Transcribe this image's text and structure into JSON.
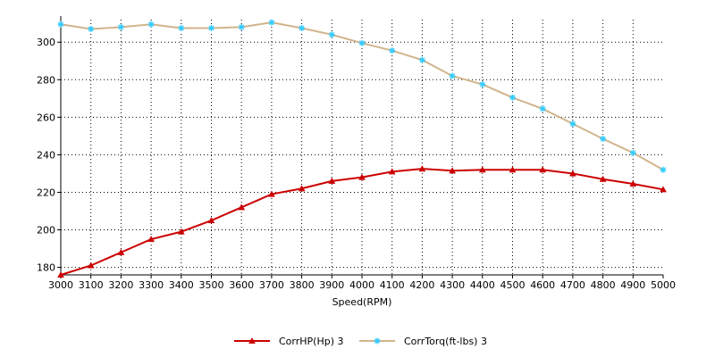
{
  "chart_data": {
    "type": "line",
    "xlabel": "Speed(RPM)",
    "ylabel": "",
    "x": [
      3000,
      3100,
      3200,
      3300,
      3400,
      3500,
      3600,
      3700,
      3800,
      3900,
      4000,
      4100,
      4200,
      4300,
      4400,
      4500,
      4600,
      4700,
      4800,
      4900,
      5000
    ],
    "xlim": [
      3000,
      5000
    ],
    "ylim": [
      176,
      312
    ],
    "yticks": [
      180,
      200,
      220,
      240,
      260,
      280,
      300
    ],
    "grid": true,
    "legend_position": "bottom",
    "series": [
      {
        "name": "CorrHP(Hp)",
        "suffix": "3",
        "color": "#cc0000",
        "marker": "triangle",
        "values": [
          176,
          181,
          188,
          195,
          199,
          205,
          212,
          219,
          222,
          226,
          228,
          231,
          232.5,
          231.5,
          232,
          232,
          232,
          230,
          227,
          224.5,
          221.5
        ]
      },
      {
        "name": "CorrTorq(ft-lbs)",
        "suffix": "3",
        "color": "#d2b48c",
        "marker_color": "#33ccff",
        "marker": "star",
        "values": [
          309.5,
          307,
          308,
          309.5,
          307.5,
          307.5,
          308,
          310.5,
          307.5,
          304,
          299.5,
          295.5,
          290.5,
          282,
          277.5,
          270.5,
          264.5,
          256.5,
          248.5,
          241,
          232
        ]
      }
    ]
  }
}
